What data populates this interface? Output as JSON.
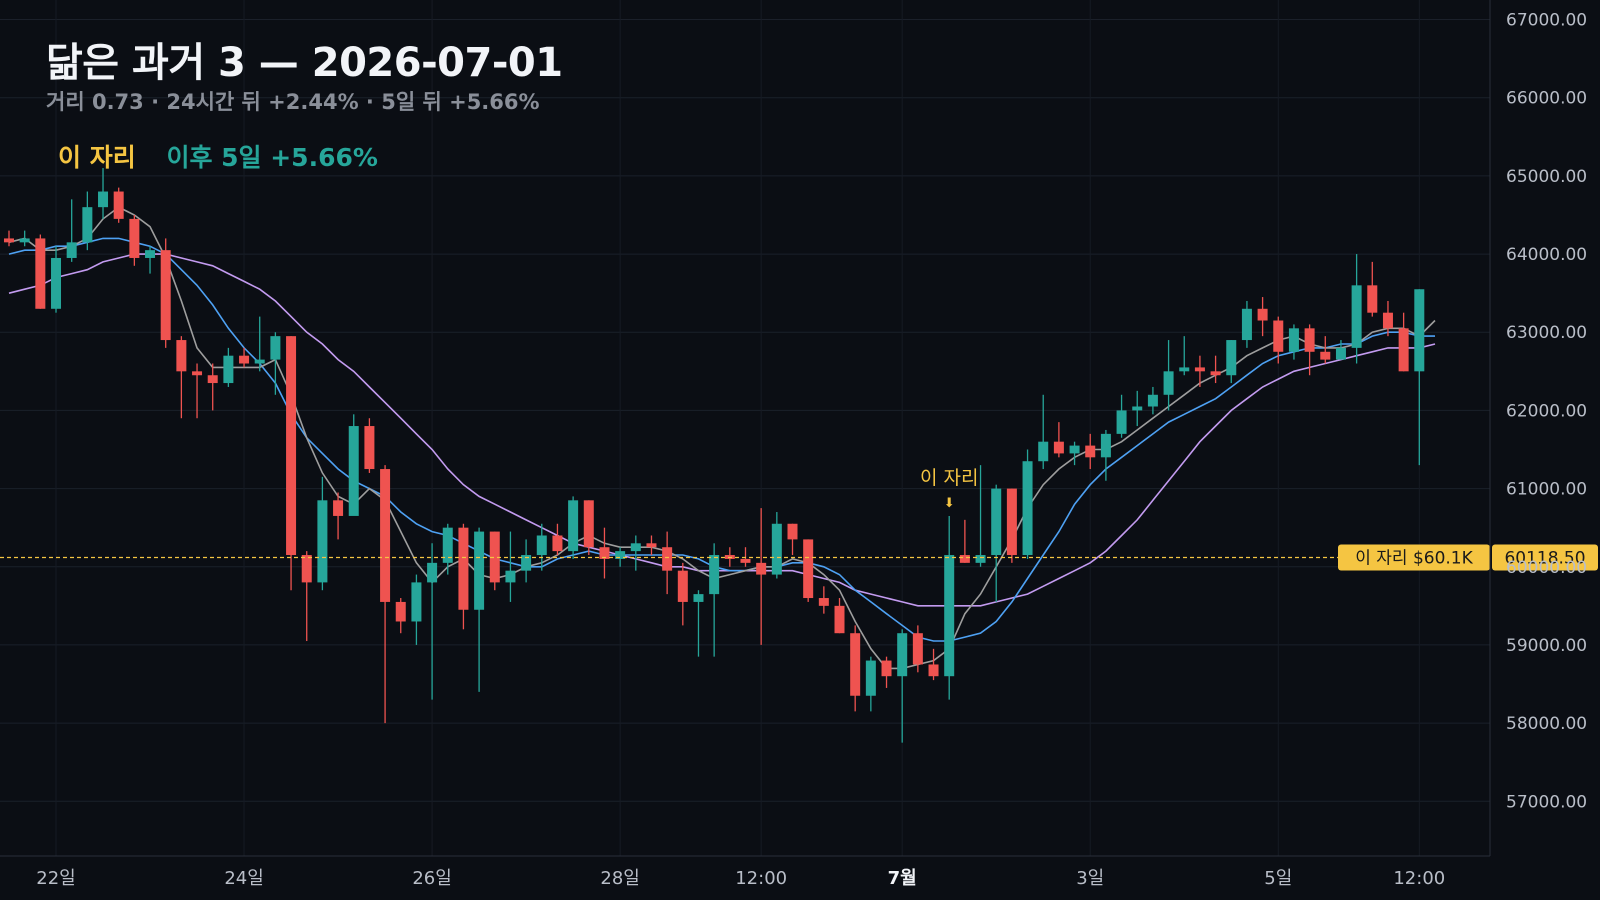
{
  "header": {
    "title": "닮은 과거 3 — 2026-07-01",
    "subtitle": "거리 0.73 · 24시간 뒤 +2.44% · 5일 뒤 +5.66%"
  },
  "legend": {
    "here_label": "이 자리",
    "after_label": "이후 5일 +5.66%"
  },
  "colors": {
    "background": "#0b0e14",
    "up": "#26a69a",
    "down": "#ef5350",
    "ma_fast": "#9e9e9e",
    "ma_mid": "#4ea1f3",
    "ma_slow": "#c39bf0",
    "marker": "#f5c542"
  },
  "chart_data": {
    "type": "candlestick",
    "y_axis_ticks": [
      "67000.00",
      "66000.00",
      "65000.00",
      "64000.00",
      "63000.00",
      "62000.00",
      "61000.00",
      "60000.00",
      "59000.00",
      "58000.00",
      "57000.00"
    ],
    "ylim": [
      56300,
      67250
    ],
    "x_axis_ticks": [
      {
        "label": "22일",
        "i": 3
      },
      {
        "label": "24일",
        "i": 15
      },
      {
        "label": "26일",
        "i": 27
      },
      {
        "label": "28일",
        "i": 39
      },
      {
        "label": "12:00",
        "i": 48
      },
      {
        "label": "7월",
        "i": 57,
        "bold": true
      },
      {
        "label": "3일",
        "i": 69
      },
      {
        "label": "5일",
        "i": 81
      },
      {
        "label": "12:00",
        "i": 90
      }
    ],
    "price_line": {
      "value": 60118.5,
      "label": "60118.50",
      "tag": "이 자리 $60.1K"
    },
    "annotation": {
      "text": "이 자리",
      "arrow": "⬇",
      "i": 60,
      "value": 60650
    },
    "candles": [
      [
        64200,
        64300,
        64100,
        64150
      ],
      [
        64150,
        64300,
        64100,
        64200
      ],
      [
        64200,
        64250,
        63300,
        63300
      ],
      [
        63300,
        64100,
        63250,
        63950
      ],
      [
        63950,
        64700,
        63900,
        64150
      ],
      [
        64150,
        64800,
        64050,
        64600
      ],
      [
        64600,
        65100,
        64450,
        64800
      ],
      [
        64800,
        64850,
        64400,
        64450
      ],
      [
        64450,
        64500,
        63850,
        63950
      ],
      [
        63950,
        64100,
        63750,
        64050
      ],
      [
        64050,
        64200,
        62800,
        62900
      ],
      [
        62900,
        62950,
        61900,
        62500
      ],
      [
        62500,
        62600,
        61900,
        62450
      ],
      [
        62450,
        62600,
        62000,
        62350
      ],
      [
        62350,
        62800,
        62300,
        62700
      ],
      [
        62700,
        62800,
        62550,
        62600
      ],
      [
        62600,
        63200,
        62500,
        62650
      ],
      [
        62650,
        63000,
        62200,
        62950
      ],
      [
        62950,
        62950,
        59700,
        60150
      ],
      [
        60150,
        60200,
        59050,
        59800
      ],
      [
        59800,
        61150,
        59700,
        60850
      ],
      [
        60850,
        60950,
        60350,
        60650
      ],
      [
        60650,
        61950,
        60700,
        61800
      ],
      [
        61800,
        61900,
        61200,
        61250
      ],
      [
        61250,
        61300,
        58000,
        59550
      ],
      [
        59550,
        59600,
        59150,
        59300
      ],
      [
        59300,
        59900,
        59000,
        59800
      ],
      [
        59800,
        60300,
        58300,
        60050
      ],
      [
        60050,
        60550,
        59900,
        60500
      ],
      [
        60500,
        60550,
        59200,
        59450
      ],
      [
        59450,
        60500,
        58400,
        60450
      ],
      [
        60450,
        60450,
        59700,
        59800
      ],
      [
        59800,
        60450,
        59550,
        59950
      ],
      [
        59950,
        60350,
        59800,
        60150
      ],
      [
        60150,
        60550,
        59950,
        60400
      ],
      [
        60400,
        60550,
        60150,
        60200
      ],
      [
        60200,
        60900,
        60100,
        60850
      ],
      [
        60850,
        60850,
        60150,
        60250
      ],
      [
        60250,
        60500,
        59850,
        60100
      ],
      [
        60100,
        60250,
        60000,
        60200
      ],
      [
        60200,
        60400,
        59950,
        60300
      ],
      [
        60300,
        60400,
        60150,
        60250
      ],
      [
        60250,
        60450,
        59650,
        59950
      ],
      [
        59950,
        60050,
        59250,
        59550
      ],
      [
        59550,
        59700,
        58850,
        59650
      ],
      [
        59650,
        60300,
        58850,
        60150
      ],
      [
        60150,
        60250,
        60000,
        60100
      ],
      [
        60100,
        60250,
        60000,
        60050
      ],
      [
        60050,
        60750,
        59000,
        59900
      ],
      [
        59900,
        60700,
        59850,
        60550
      ],
      [
        60550,
        60550,
        60150,
        60350
      ],
      [
        60350,
        60350,
        59550,
        59600
      ],
      [
        59600,
        59750,
        59400,
        59500
      ],
      [
        59500,
        59600,
        59150,
        59150
      ],
      [
        59150,
        59250,
        58150,
        58350
      ],
      [
        58350,
        58850,
        58150,
        58800
      ],
      [
        58800,
        58850,
        58450,
        58600
      ],
      [
        58600,
        59200,
        57750,
        59150
      ],
      [
        59150,
        59250,
        58650,
        58750
      ],
      [
        58750,
        58950,
        58550,
        58600
      ],
      [
        58600,
        60650,
        58300,
        60150
      ],
      [
        60150,
        60600,
        60050,
        60050
      ],
      [
        60050,
        61300,
        60000,
        60150
      ],
      [
        60150,
        61050,
        59550,
        61000
      ],
      [
        61000,
        61000,
        60050,
        60150
      ],
      [
        60150,
        61500,
        60100,
        61350
      ],
      [
        61350,
        62200,
        61250,
        61600
      ],
      [
        61600,
        61850,
        61400,
        61450
      ],
      [
        61450,
        61600,
        61300,
        61550
      ],
      [
        61550,
        61700,
        61250,
        61400
      ],
      [
        61400,
        61750,
        61100,
        61700
      ],
      [
        61700,
        62200,
        61650,
        62000
      ],
      [
        62000,
        62250,
        61800,
        62050
      ],
      [
        62050,
        62300,
        61950,
        62200
      ],
      [
        62200,
        62900,
        62000,
        62500
      ],
      [
        62500,
        62950,
        62450,
        62550
      ],
      [
        62550,
        62700,
        62300,
        62500
      ],
      [
        62500,
        62700,
        62350,
        62450
      ],
      [
        62450,
        62900,
        62350,
        62900
      ],
      [
        62900,
        63400,
        62800,
        63300
      ],
      [
        63300,
        63450,
        62950,
        63150
      ],
      [
        63150,
        63200,
        62600,
        62750
      ],
      [
        62750,
        63100,
        62650,
        63050
      ],
      [
        63050,
        63100,
        62450,
        62750
      ],
      [
        62750,
        62950,
        62600,
        62650
      ],
      [
        62650,
        62900,
        62650,
        62800
      ],
      [
        62800,
        64000,
        62600,
        63600
      ],
      [
        63600,
        63900,
        63200,
        63250
      ],
      [
        63250,
        63400,
        62950,
        63050
      ],
      [
        63050,
        63250,
        62500,
        62500
      ],
      [
        62500,
        63550,
        61300,
        63550
      ]
    ],
    "ma_fast": [
      64150,
      64200,
      64050,
      64050,
      64100,
      64200,
      64450,
      64600,
      64500,
      64350,
      63950,
      63400,
      62800,
      62550,
      62550,
      62550,
      62550,
      62650,
      62200,
      61650,
      61200,
      60900,
      60800,
      61000,
      60850,
      60450,
      60050,
      59800,
      60000,
      60100,
      59900,
      59850,
      59900,
      60000,
      60050,
      60150,
      60300,
      60400,
      60300,
      60250,
      60250,
      60250,
      60200,
      60100,
      59950,
      59850,
      59900,
      59950,
      60000,
      60000,
      60100,
      60050,
      59900,
      59700,
      59300,
      58950,
      58700,
      58700,
      58750,
      58800,
      58950,
      59400,
      59650,
      60000,
      60350,
      60750,
      61050,
      61250,
      61400,
      61500,
      61500,
      61600,
      61750,
      61900,
      62050,
      62200,
      62350,
      62450,
      62550,
      62700,
      62800,
      62900,
      62950,
      62850,
      62800,
      62800,
      62850,
      63000,
      63050,
      63050,
      62950,
      63150
    ],
    "ma_mid": [
      64000,
      64050,
      64050,
      64100,
      64100,
      64150,
      64200,
      64200,
      64150,
      64100,
      64000,
      63800,
      63600,
      63350,
      63050,
      62800,
      62600,
      62350,
      61950,
      61650,
      61450,
      61250,
      61100,
      61000,
      60900,
      60700,
      60550,
      60450,
      60400,
      60300,
      60200,
      60100,
      60050,
      60000,
      60000,
      60100,
      60150,
      60200,
      60150,
      60150,
      60150,
      60150,
      60150,
      60150,
      60100,
      60000,
      59950,
      59950,
      60000,
      60000,
      60050,
      60050,
      60000,
      59900,
      59700,
      59550,
      59400,
      59250,
      59100,
      59050,
      59050,
      59100,
      59150,
      59300,
      59550,
      59850,
      60150,
      60450,
      60800,
      61050,
      61250,
      61400,
      61550,
      61700,
      61850,
      61950,
      62050,
      62150,
      62300,
      62450,
      62600,
      62700,
      62750,
      62800,
      62800,
      62850,
      62850,
      62950,
      63000,
      63000,
      62950,
      62950
    ],
    "ma_slow": [
      63500,
      63550,
      63600,
      63700,
      63750,
      63800,
      63900,
      63950,
      64000,
      64000,
      64000,
      63950,
      63900,
      63850,
      63750,
      63650,
      63550,
      63400,
      63200,
      63000,
      62850,
      62650,
      62500,
      62300,
      62100,
      61900,
      61700,
      61500,
      61250,
      61050,
      60900,
      60800,
      60700,
      60600,
      60500,
      60400,
      60300,
      60250,
      60200,
      60150,
      60100,
      60050,
      60000,
      60000,
      59950,
      59950,
      59950,
      59950,
      59950,
      59950,
      59950,
      59900,
      59850,
      59800,
      59700,
      59650,
      59600,
      59550,
      59500,
      59500,
      59500,
      59500,
      59500,
      59550,
      59600,
      59650,
      59750,
      59850,
      59950,
      60050,
      60200,
      60400,
      60600,
      60850,
      61100,
      61350,
      61600,
      61800,
      62000,
      62150,
      62300,
      62400,
      62500,
      62550,
      62600,
      62650,
      62700,
      62750,
      62800,
      62800,
      62800,
      62850
    ]
  }
}
